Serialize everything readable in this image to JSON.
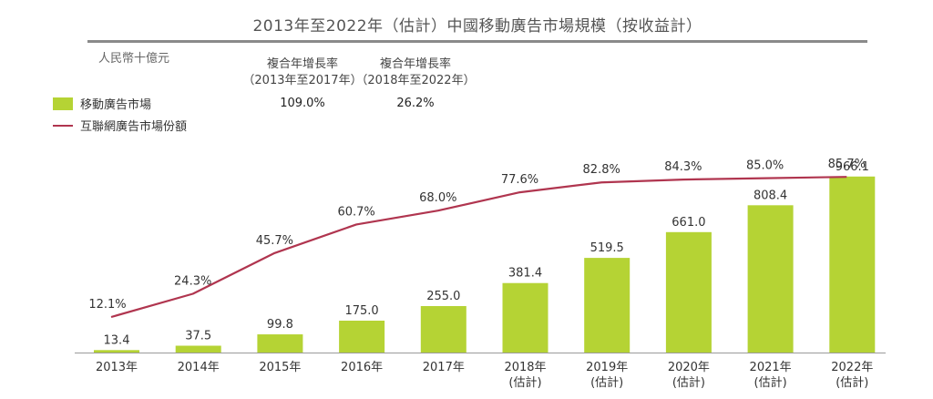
{
  "chart_data": {
    "type": "bar",
    "title": "2013年至2022年（估計）中國移動廣告市場規模（按收益計）",
    "unit_label": "人民幣十億元",
    "categories": [
      [
        "2013年"
      ],
      [
        "2014年"
      ],
      [
        "2015年"
      ],
      [
        "2016年"
      ],
      [
        "2017年"
      ],
      [
        "2018年",
        "(估計)"
      ],
      [
        "2019年",
        "(估計)"
      ],
      [
        "2020年",
        "(估計)"
      ],
      [
        "2021年",
        "(估計)"
      ],
      [
        "2022年",
        "(估計)"
      ]
    ],
    "series": [
      {
        "name": "移動廣告市場",
        "type": "bar",
        "color": "#b5d334",
        "values": [
          13.4,
          37.5,
          99.8,
          175.0,
          255.0,
          381.4,
          519.5,
          661.0,
          808.4,
          966.1
        ],
        "labels": [
          "13.4",
          "37.5",
          "99.8",
          "175.0",
          "255.0",
          "381.4",
          "519.5",
          "661.0",
          "808.4",
          "966.1"
        ]
      },
      {
        "name": "互聯網廣告市場份額",
        "type": "line",
        "color": "#b0354f",
        "values": [
          12.1,
          24.3,
          45.7,
          60.7,
          68.0,
          77.6,
          82.8,
          84.3,
          85.0,
          85.7
        ],
        "labels": [
          "12.1%",
          "24.3%",
          "45.7%",
          "60.7%",
          "68.0%",
          "77.6%",
          "82.8%",
          "84.3%",
          "85.0%",
          "85.7%"
        ]
      }
    ],
    "ylim_bar": [
      0,
      1000
    ],
    "ylim_line": [
      0,
      100
    ],
    "legend_position": "top-left",
    "cagr": [
      {
        "line1": "複合年增長率",
        "line2": "（2013年至2017年）",
        "value": "109.0%"
      },
      {
        "line1": "複合年增長率",
        "line2": "（2018年至2022年）",
        "value": "26.2%"
      }
    ]
  }
}
